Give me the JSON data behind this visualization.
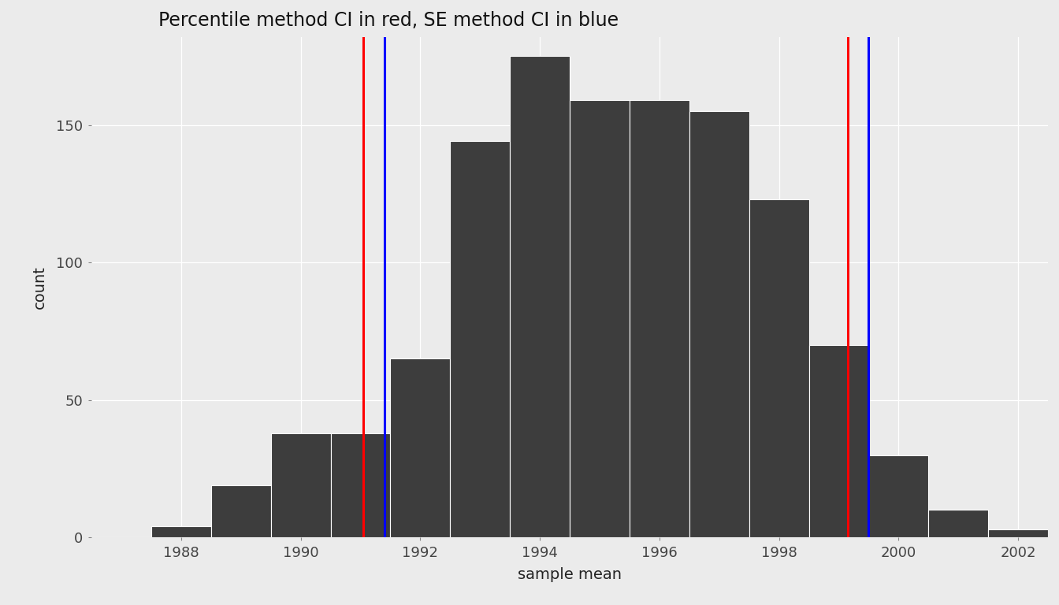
{
  "title": "Percentile method CI in red, SE method CI in blue",
  "xlabel": "sample mean",
  "ylabel": "count",
  "background_color": "#EBEBEB",
  "bar_color": "#3d3d3d",
  "bar_centers": [
    1987,
    1988,
    1989,
    1990,
    1991,
    1992,
    1993,
    1994,
    1995,
    1996,
    1997,
    1998,
    1999,
    2000,
    2001,
    2002
  ],
  "bar_counts": [
    0,
    4,
    19,
    38,
    38,
    65,
    144,
    175,
    159,
    159,
    155,
    123,
    70,
    30,
    10,
    3
  ],
  "red_lines": [
    1991.05,
    1999.15
  ],
  "blue_lines": [
    1991.4,
    1999.5
  ],
  "xlim": [
    1986.5,
    2002.5
  ],
  "ylim": [
    0,
    182
  ],
  "xticks": [
    1988,
    1990,
    1992,
    1994,
    1996,
    1998,
    2000,
    2002
  ],
  "yticks": [
    0,
    50,
    100,
    150
  ],
  "grid_color": "#ffffff",
  "title_fontsize": 17,
  "label_fontsize": 14,
  "tick_fontsize": 13,
  "line_width": 2.2
}
